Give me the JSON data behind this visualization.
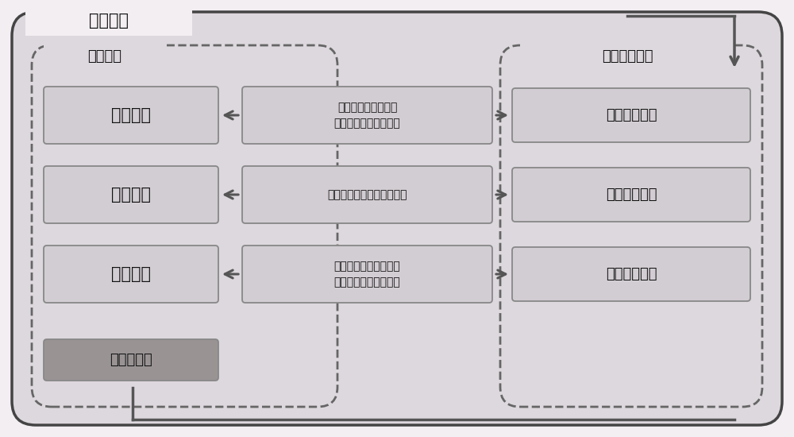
{
  "title": "报表开发",
  "bg_color": "#f2eef2",
  "outer_bg_color": "#ddd8dd",
  "outer_edge_color": "#444444",
  "dashed_color": "#666666",
  "box_fill_light": "#d2cdd2",
  "box_fill_dark": "#999394",
  "box_edge_color": "#888888",
  "text_color": "#111111",
  "arrow_color": "#555555",
  "left_label": "界面设计",
  "right_label": "扩展代码设计",
  "left_boxes": [
    "基本格式",
    "业务格式",
    "数据处理",
    "查询扩展类"
  ],
  "middle_boxes": [
    "设置报表基本结构、\n报表行列、分组信息等",
    "设置单元格式、数值精度等",
    "排序设置、筛选设置、\n数据汇总、参数设置等"
  ],
  "right_boxes": [
    "基本格式调整",
    "业务格式调整",
    "数据处理设置"
  ]
}
